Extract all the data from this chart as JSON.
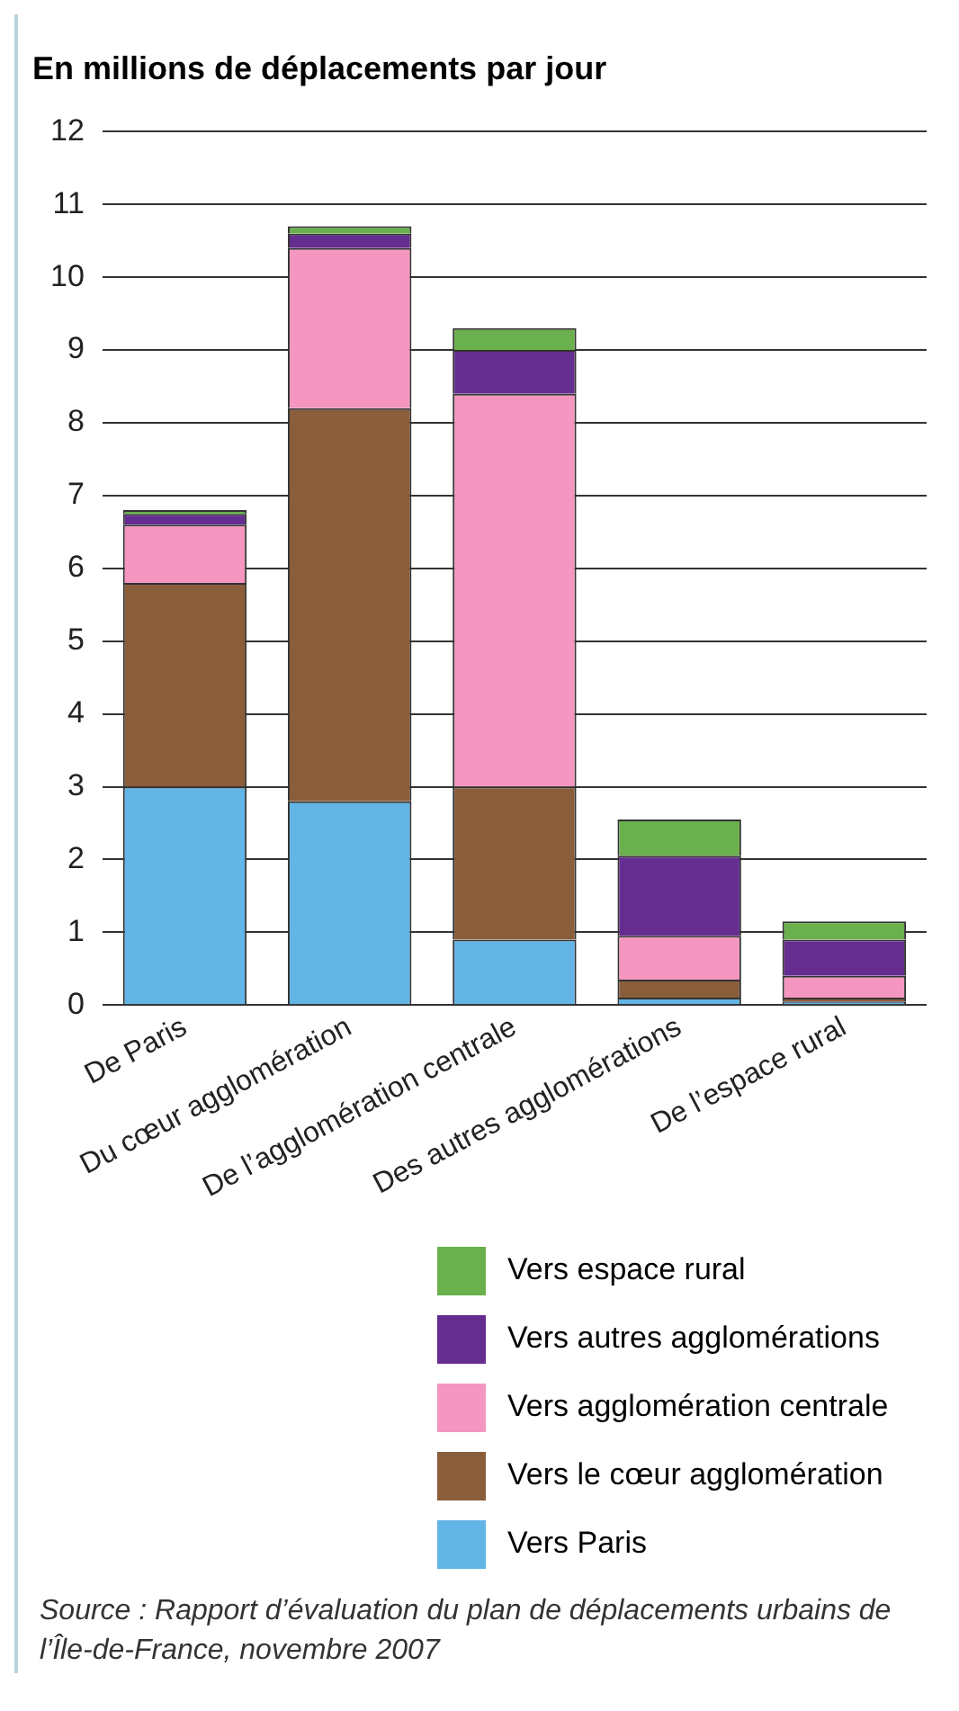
{
  "chart_data": {
    "type": "bar",
    "title": "En millions de déplacements par jour",
    "categories": [
      "De Paris",
      "Du cœur agglomération",
      "De l’agglomération centrale",
      "Des autres agglomérations",
      "De l’espace rural"
    ],
    "series": [
      {
        "name": "Vers Paris",
        "color": "#62b5e5",
        "values": [
          3.0,
          2.8,
          0.9,
          0.1,
          0.05
        ]
      },
      {
        "name": "Vers le cœur agglomération",
        "color": "#8a5d3b",
        "values": [
          2.8,
          5.4,
          2.1,
          0.25,
          0.05
        ]
      },
      {
        "name": "Vers agglomération centrale",
        "color": "#f496bf",
        "values": [
          0.8,
          2.2,
          5.4,
          0.6,
          0.3
        ]
      },
      {
        "name": "Vers autres agglomérations",
        "color": "#662d91",
        "values": [
          0.15,
          0.2,
          0.6,
          1.1,
          0.5
        ]
      },
      {
        "name": "Vers espace rural",
        "color": "#6ab04c",
        "values": [
          0.05,
          0.1,
          0.3,
          0.5,
          0.25
        ]
      }
    ],
    "stacked": true,
    "ylim": [
      0,
      12
    ],
    "yticks": [
      0,
      1,
      2,
      3,
      4,
      5,
      6,
      7,
      8,
      9,
      10,
      11,
      12
    ],
    "grid": "y",
    "legend": "bottom",
    "annotations": [
      "Source : Rapport d’évaluation du plan de déplacements urbains de l’Île-de-France, novembre 2007"
    ]
  }
}
